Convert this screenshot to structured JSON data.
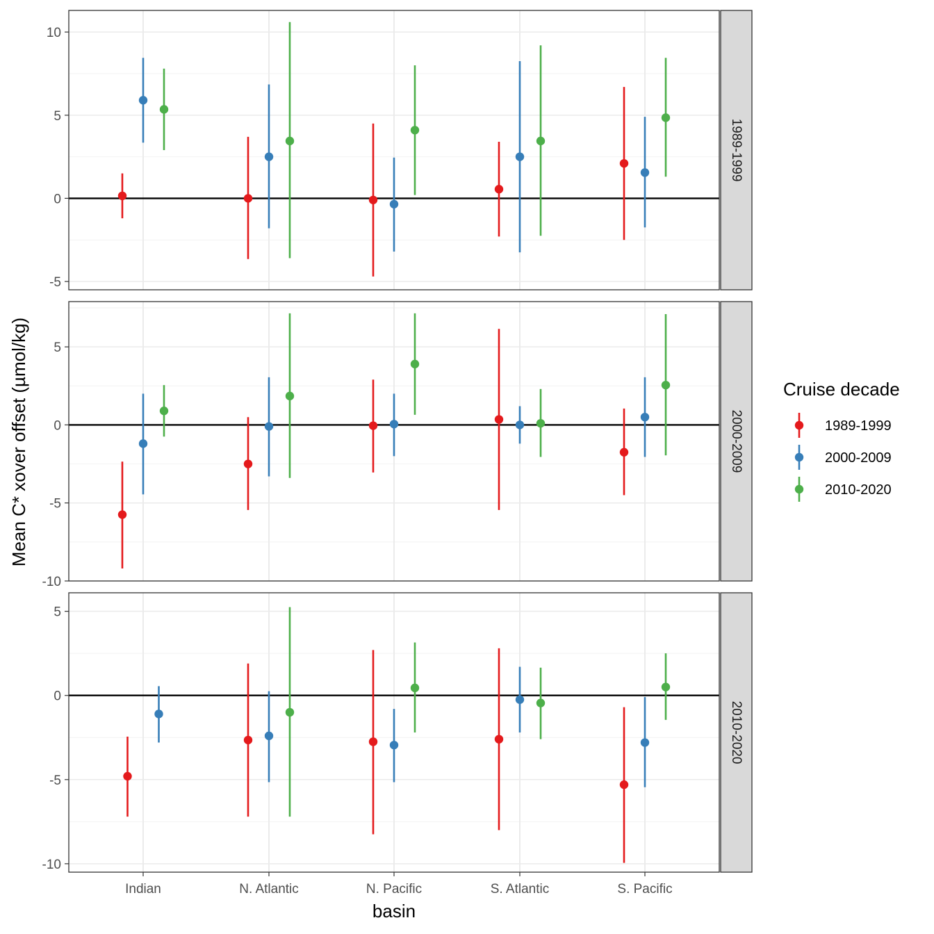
{
  "chart_data": {
    "type": "pointrange",
    "xlabel": "basin",
    "ylabel": "Mean C* xover offset (µmol/kg)",
    "categories": [
      "Indian",
      "N. Atlantic",
      "N. Pacific",
      "S. Atlantic",
      "S. Pacific"
    ],
    "legend": {
      "title": "Cruise decade",
      "placement": "right",
      "entries": [
        "1989-1999",
        "2000-2009",
        "2010-2020"
      ],
      "colors": [
        "#E41A1C",
        "#377EB8",
        "#4DAF4A"
      ]
    },
    "reference_line": 0,
    "panels": [
      {
        "strip": "1989-1999",
        "ylim": [
          -5.5,
          11.3
        ],
        "yticks": [
          -5,
          0,
          5,
          10
        ],
        "series": [
          {
            "name": "1989-1999",
            "mean": [
              0.15,
              0.0,
              -0.1,
              0.55,
              2.1
            ],
            "lower": [
              -1.2,
              -3.65,
              -4.7,
              -2.3,
              -2.5
            ],
            "upper": [
              1.5,
              3.7,
              4.5,
              3.4,
              6.7
            ]
          },
          {
            "name": "2000-2009",
            "mean": [
              5.9,
              2.5,
              -0.35,
              2.5,
              1.55
            ],
            "lower": [
              3.35,
              -1.8,
              -3.2,
              -3.25,
              -1.75
            ],
            "upper": [
              8.45,
              6.85,
              2.45,
              8.25,
              4.9
            ]
          },
          {
            "name": "2010-2020",
            "mean": [
              5.35,
              3.45,
              4.1,
              3.45,
              4.85
            ],
            "lower": [
              2.9,
              -3.6,
              0.2,
              -2.25,
              1.3
            ],
            "upper": [
              7.8,
              10.6,
              8.0,
              9.2,
              8.45
            ]
          }
        ]
      },
      {
        "strip": "2000-2009",
        "ylim": [
          -10.0,
          7.9
        ],
        "yticks": [
          -10,
          -5,
          0,
          5
        ],
        "series": [
          {
            "name": "1989-1999",
            "mean": [
              -5.75,
              -2.5,
              -0.05,
              0.35,
              -1.75
            ],
            "lower": [
              -9.2,
              -5.45,
              -3.05,
              -5.45,
              -4.5
            ],
            "upper": [
              -2.35,
              0.5,
              2.9,
              6.15,
              1.05
            ]
          },
          {
            "name": "2000-2009",
            "mean": [
              -1.2,
              -0.1,
              0.05,
              0.0,
              0.5
            ],
            "lower": [
              -4.45,
              -3.3,
              -2.0,
              -1.2,
              -2.05
            ],
            "upper": [
              2.0,
              3.05,
              2.0,
              1.2,
              3.05
            ]
          },
          {
            "name": "2010-2020",
            "mean": [
              0.9,
              1.85,
              3.9,
              0.1,
              2.55
            ],
            "lower": [
              -0.75,
              -3.4,
              0.65,
              -2.05,
              -1.95
            ],
            "upper": [
              2.55,
              7.15,
              7.15,
              2.3,
              7.1
            ]
          }
        ]
      },
      {
        "strip": "2010-2020",
        "ylim": [
          -10.5,
          6.1
        ],
        "yticks": [
          -10,
          -5,
          0,
          5
        ],
        "series": [
          {
            "name": "1989-1999",
            "mean": [
              -4.8,
              -2.65,
              -2.75,
              -2.6,
              -5.3
            ],
            "lower": [
              -7.2,
              -7.2,
              -8.25,
              -8.0,
              -9.95
            ],
            "upper": [
              -2.45,
              1.9,
              2.7,
              2.8,
              -0.7
            ]
          },
          {
            "name": "2000-2009",
            "mean": [
              -1.1,
              -2.4,
              -2.95,
              -0.25,
              -2.8
            ],
            "lower": [
              -2.8,
              -5.15,
              -5.15,
              -2.2,
              -5.45
            ],
            "upper": [
              0.55,
              0.25,
              -0.8,
              1.7,
              -0.1
            ]
          },
          {
            "name": "2010-2020",
            "mean": [
              null,
              -1.0,
              0.45,
              -0.45,
              0.5
            ],
            "lower": [
              null,
              -7.2,
              -2.2,
              -2.6,
              -1.45
            ],
            "upper": [
              null,
              5.25,
              3.15,
              1.65,
              2.5
            ]
          }
        ]
      }
    ]
  }
}
